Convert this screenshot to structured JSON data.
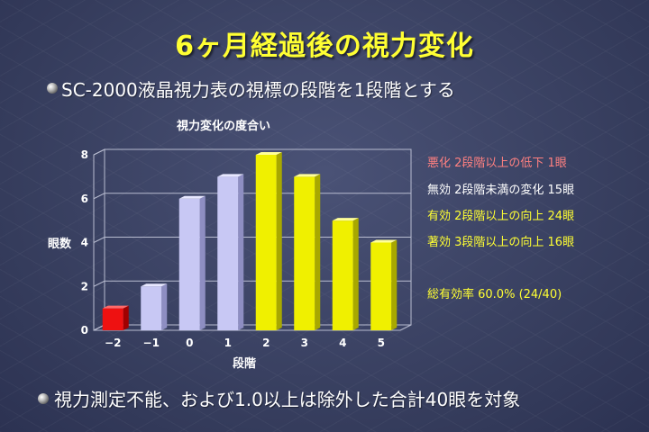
{
  "slide": {
    "title": "6ヶ月経過後の視力変化",
    "bullet1": "SC-2000液晶視力表の視標の段階を1段階とする",
    "bullet2": "視力測定不能、および1.0以上は除外した合計40眼を対象"
  },
  "legend": {
    "worse": "悪化  2段階以上の低下     1眼",
    "none": "無効  2段階未満の変化  15眼",
    "effective": "有効  2段階以上の向上  24眼",
    "remarkable": "著効  3段階以上の向上  16眼",
    "total": "総有効率  60.0% (24/40)"
  },
  "colors": {
    "title": "#ffff33",
    "worse": "#ff8080",
    "none": "#ffffff",
    "effective": "#ffff33",
    "remarkable": "#ffff33",
    "total": "#ffff33",
    "bar_red": "#ee1111",
    "bar_lavender": "#c8c8f4",
    "bar_yellow": "#f0f000"
  },
  "chart_data": {
    "type": "bar",
    "title": "視力変化の度合い",
    "xlabel": "段階",
    "ylabel": "眼数",
    "categories": [
      "−2",
      "−1",
      "0",
      "1",
      "2",
      "3",
      "4",
      "5"
    ],
    "values": [
      1,
      2,
      6,
      7,
      8,
      7,
      5,
      4
    ],
    "bar_colors": [
      "red",
      "lavender",
      "lavender",
      "lavender",
      "yellow",
      "yellow",
      "yellow",
      "yellow"
    ],
    "ylim": [
      0,
      8
    ],
    "yticks": [
      0,
      2,
      4,
      6,
      8
    ],
    "grid": true,
    "style": "3d"
  }
}
